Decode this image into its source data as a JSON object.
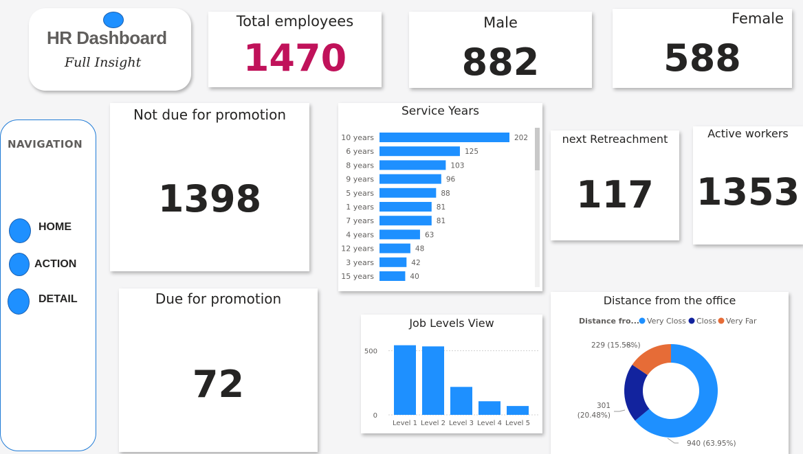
{
  "header": {
    "title": "HR Dashboard",
    "subtitle": "Full Insight"
  },
  "kpis": {
    "total": {
      "label": "Total employees",
      "value": "1470"
    },
    "male": {
      "label": "Male",
      "value": "882"
    },
    "female": {
      "label": "Female",
      "value": "588"
    },
    "not_due": {
      "label": "Not due for promotion",
      "value": "1398"
    },
    "due": {
      "label": "Due for promotion",
      "value": "72"
    },
    "retire": {
      "label": "next Retreachment",
      "value": "117"
    },
    "active": {
      "label": "Active workers",
      "value": "1353"
    }
  },
  "nav": {
    "title": "NAVIGATION",
    "items": [
      {
        "label": "HOME"
      },
      {
        "label": "ACTION"
      },
      {
        "label": "DETAIL"
      }
    ]
  },
  "colors": {
    "accent": "#1e90ff",
    "total_value": "#c0125a",
    "very_close": "#1e90ff",
    "close": "#12239e",
    "very_far": "#e66c37"
  },
  "chart_data": [
    {
      "type": "bar",
      "orientation": "horizontal",
      "title": "Service Years",
      "categories": [
        "10 years",
        "6 years",
        "8 years",
        "9 years",
        "5 years",
        "1 years",
        "7 years",
        "4 years",
        "12 years",
        "3 years",
        "15 years"
      ],
      "values": [
        202,
        125,
        103,
        96,
        88,
        81,
        81,
        63,
        48,
        42,
        40
      ],
      "xlim": [
        0,
        202
      ]
    },
    {
      "type": "bar",
      "title": "Job Levels View",
      "categories": [
        "Level 1",
        "Level 2",
        "Level 3",
        "Level 4",
        "Level 5"
      ],
      "values": [
        543,
        534,
        218,
        106,
        69
      ],
      "ylim": [
        0,
        600
      ],
      "yticks": [
        "0",
        "500"
      ]
    },
    {
      "type": "pie",
      "title": "Distance from the office",
      "legend_title": "Distance fro...",
      "legend_position": "top",
      "slices": [
        {
          "name": "Very Closs",
          "value": 940,
          "label": "940 (63.95%)",
          "color": "#1e90ff"
        },
        {
          "name": "Closs",
          "value": 301,
          "label_line1": "301",
          "label_line2": "(20.48%)",
          "color": "#12239e"
        },
        {
          "name": "Very Far",
          "value": 229,
          "label": "229 (15.58%)",
          "color": "#e66c37"
        }
      ]
    }
  ]
}
